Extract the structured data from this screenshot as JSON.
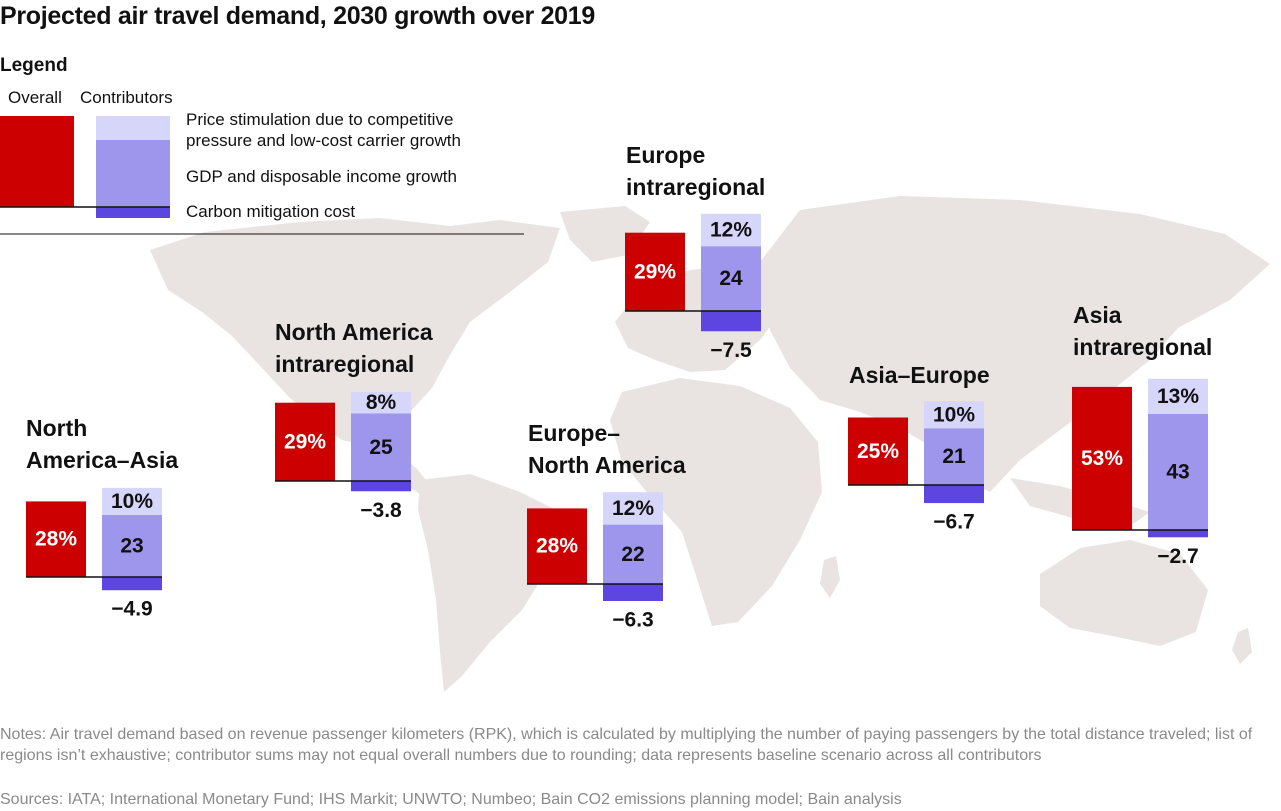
{
  "title": "Projected air travel demand, 2030 growth over 2019",
  "legend": {
    "heading": "Legend",
    "overall_label": "Overall",
    "contributors_label": "Contributors",
    "items": [
      {
        "label": "Price stimulation due to competitive pressure and low-cost carrier growth",
        "color": "#d6d5fa"
      },
      {
        "label": "GDP and disposable income growth",
        "color": "#9e96ec"
      },
      {
        "label": "Carbon mitigation cost",
        "color": "#5d46e0"
      }
    ],
    "overall_color": "#cc0000"
  },
  "chart_data": {
    "type": "bar",
    "units": "percentage points",
    "regions": [
      {
        "name": "North America–Asia",
        "overall": 28,
        "price": 10,
        "gdp": 23,
        "carbon": -4.9,
        "overall_label": "28%",
        "price_label": "10%",
        "gdp_label": "23",
        "carbon_label": "−4.9"
      },
      {
        "name": "North America intraregional",
        "overall": 29,
        "price": 8,
        "gdp": 25,
        "carbon": -3.8,
        "overall_label": "29%",
        "price_label": "8%",
        "gdp_label": "25",
        "carbon_label": "−3.8"
      },
      {
        "name": "Europe intraregional",
        "overall": 29,
        "price": 12,
        "gdp": 24,
        "carbon": -7.5,
        "overall_label": "29%",
        "price_label": "12%",
        "gdp_label": "24",
        "carbon_label": "−7.5"
      },
      {
        "name": "Europe–North America",
        "overall": 28,
        "price": 12,
        "gdp": 22,
        "carbon": -6.3,
        "overall_label": "28%",
        "price_label": "12%",
        "gdp_label": "22",
        "carbon_label": "−6.3"
      },
      {
        "name": "Asia–Europe",
        "overall": 25,
        "price": 10,
        "gdp": 21,
        "carbon": -6.7,
        "overall_label": "25%",
        "price_label": "10%",
        "gdp_label": "21",
        "carbon_label": "−6.7"
      },
      {
        "name": "Asia intraregional",
        "overall": 53,
        "price": 13,
        "gdp": 43,
        "carbon": -2.7,
        "overall_label": "53%",
        "price_label": "13%",
        "gdp_label": "43",
        "carbon_label": "−2.7"
      }
    ]
  },
  "notes": "Notes: Air travel demand based on revenue passenger kilometers (RPK), which is calculated by multiplying the number of paying passengers by the total distance traveled; list of regions isn’t exhaustive; contributor sums may not equal overall numbers due to rounding; data represents baseline scenario across all contributors",
  "sources": "Sources: IATA; International Monetary Fund; IHS Markit; UNWTO; Numbeo; Bain CO2 emissions planning model; Bain analysis",
  "colors": {
    "map": "#e9e4e1",
    "overall": "#cc0000",
    "price": "#d6d5fa",
    "gdp": "#9e96ec",
    "carbon": "#5d46e0"
  }
}
